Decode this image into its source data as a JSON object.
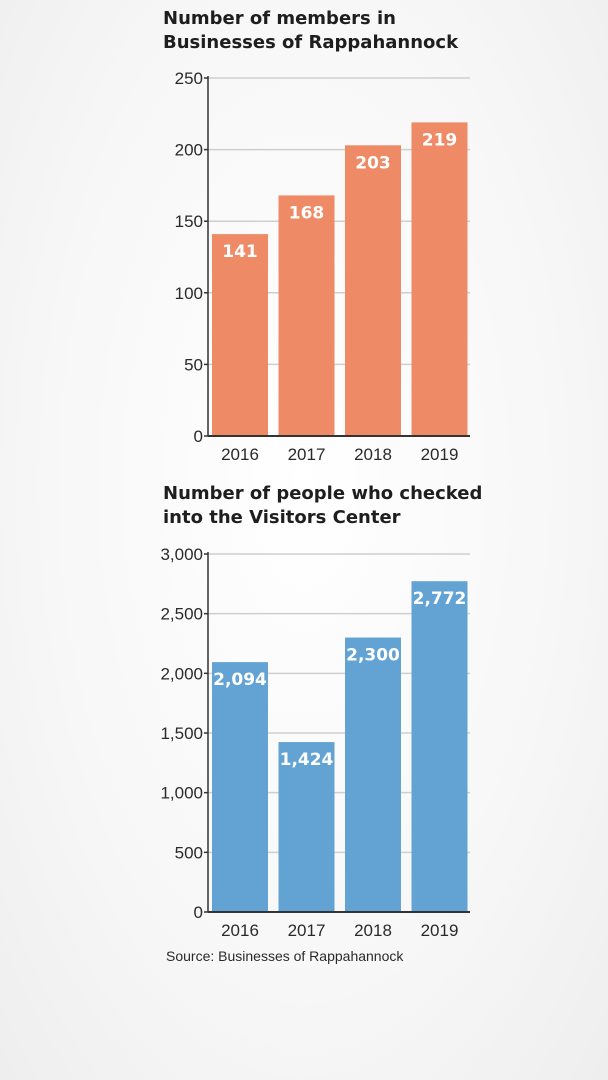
{
  "chart_data": [
    {
      "type": "bar",
      "title_lines": [
        "Number of members in",
        "Businesses of Rappahannock"
      ],
      "categories": [
        "2016",
        "2017",
        "2018",
        "2019"
      ],
      "values": [
        141,
        168,
        203,
        219
      ],
      "value_labels": [
        "141",
        "168",
        "203",
        "219"
      ],
      "ylim": [
        0,
        250
      ],
      "yticks": [
        0,
        50,
        100,
        150,
        200,
        250
      ],
      "ytick_labels": [
        "0",
        "50",
        "100",
        "150",
        "200",
        "250"
      ],
      "grid": true,
      "bar_color": "#ef8a66",
      "grid_color": "#cfcfcf"
    },
    {
      "type": "bar",
      "title_lines": [
        "Number of people who checked",
        "into the Visitors Center"
      ],
      "categories": [
        "2016",
        "2017",
        "2018",
        "2019"
      ],
      "values": [
        2094,
        1424,
        2300,
        2772
      ],
      "value_labels": [
        "2,094",
        "1,424",
        "2,300",
        "2,772"
      ],
      "ylim": [
        0,
        3000
      ],
      "yticks": [
        0,
        500,
        1000,
        1500,
        2000,
        2500,
        3000
      ],
      "ytick_labels": [
        "0",
        "500",
        "1,000",
        "1,500",
        "2,000",
        "2,500",
        "3,000"
      ],
      "grid": true,
      "bar_color": "#62a3d3",
      "grid_color": "#cfcfcf"
    }
  ],
  "source": "Source: Businesses of Rappahannock"
}
